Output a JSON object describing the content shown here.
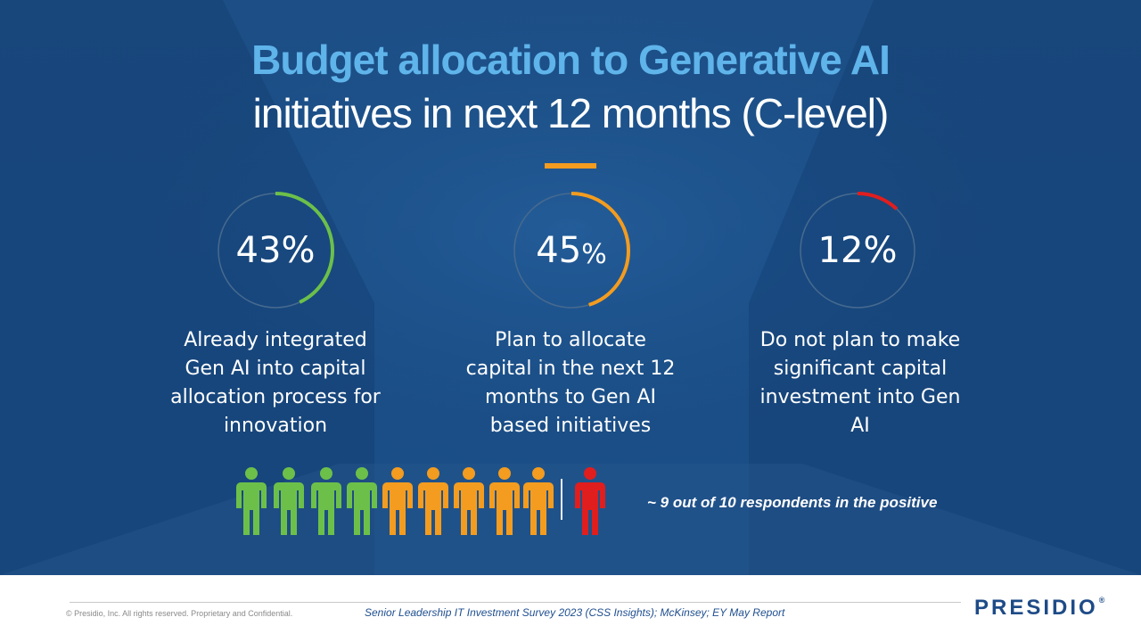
{
  "title": {
    "line1": "Budget allocation to Generative AI",
    "line2": "initiatives in next 12 months (C-level)"
  },
  "colors": {
    "background": "#1b4e86",
    "title_highlight": "#5fb4ea",
    "accent": "#f39c1f",
    "green": "#6cc04a",
    "orange": "#f39c1f",
    "red": "#e01e1e",
    "track": "#3b5e85"
  },
  "stats": [
    {
      "value": 43,
      "number": "43%",
      "unit": "",
      "color": "#6cc04a",
      "label": "Already integrated Gen AI into capital allocation process for innovation"
    },
    {
      "value": 45,
      "number": "45",
      "unit": "%",
      "color": "#f39c1f",
      "label": "Plan to allocate capital in the next 12 months to Gen AI based initiatives"
    },
    {
      "value": 12,
      "number": "12%",
      "unit": "",
      "color": "#e01e1e",
      "label": "Do not plan to make significant capital investment into Gen AI"
    }
  ],
  "respondents": {
    "figures": [
      "green",
      "green",
      "green",
      "green",
      "orange",
      "orange",
      "orange",
      "orange",
      "orange",
      "red"
    ],
    "summary": "~ 9 out of 10 respondents in the positive"
  },
  "footer": {
    "copyright": "© Presidio, Inc. All rights reserved. Proprietary and Confidential.",
    "source": "Senior Leadership IT Investment Survey 2023 (CSS Insights); McKinsey; EY May Report",
    "logo": "PRESIDIO",
    "logo_mark": "®"
  }
}
